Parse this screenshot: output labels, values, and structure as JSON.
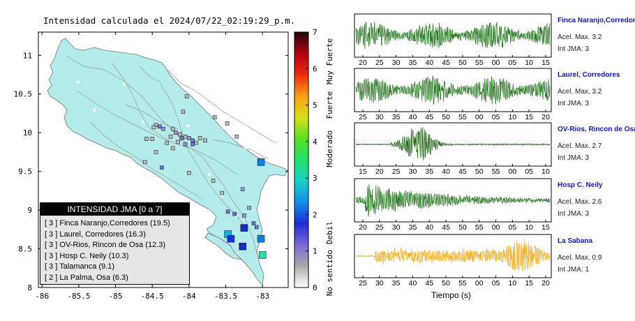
{
  "title": "Intensidad calculada el 2024/07/22_02:19:29_p.m.",
  "map": {
    "x_ticks": [
      "-86",
      "-85.5",
      "-85",
      "-84.5",
      "-84",
      "-83.5",
      "-83"
    ],
    "y_ticks": [
      "11",
      "10.5",
      "10",
      "9.5",
      "9",
      "8.5",
      "8"
    ],
    "x_values": [
      -86,
      -85.5,
      -85,
      -84.5,
      -84,
      -83.5,
      -83
    ],
    "y_values": [
      11,
      10.5,
      10,
      9.5,
      9,
      8.5,
      8
    ],
    "land_color": "#b4ecec",
    "stations": [
      {
        "lon": -83.02,
        "lat": 9.62,
        "color": "#0f7be0",
        "big": true
      },
      {
        "lon": -83.02,
        "lat": 8.63,
        "color": "#0f7be0",
        "big": true
      },
      {
        "lon": -83.0,
        "lat": 8.42,
        "color": "#26e0b0",
        "big": true
      },
      {
        "lon": -83.47,
        "lat": 8.69,
        "color": "#10b4e6",
        "big": true
      },
      {
        "lon": -83.43,
        "lat": 8.63,
        "color": "#1234d8",
        "big": true
      },
      {
        "lon": -83.25,
        "lat": 8.77,
        "color": "#1a28c8",
        "big": true
      },
      {
        "lon": -83.27,
        "lat": 8.53,
        "color": "#1a28c8",
        "big": true
      },
      {
        "lon": -83.27,
        "lat": 9.27,
        "color": "#8fa0e0",
        "big": false
      },
      {
        "lon": -83.18,
        "lat": 9.03,
        "color": "#8fa0e0",
        "big": false
      },
      {
        "lon": -83.47,
        "lat": 8.98,
        "color": "#6a78d8",
        "big": false
      },
      {
        "lon": -83.38,
        "lat": 8.95,
        "color": "#6a78d8",
        "big": false
      },
      {
        "lon": -83.25,
        "lat": 8.93,
        "color": "#9c8ce0",
        "big": false
      },
      {
        "lon": -83.12,
        "lat": 8.83,
        "color": "#6a78d8",
        "big": false
      },
      {
        "lon": -83.08,
        "lat": 8.78,
        "color": "#6a78d8",
        "big": false
      },
      {
        "lon": -83.55,
        "lat": 9.22,
        "color": "#bbbbbb",
        "big": false
      },
      {
        "lon": -83.67,
        "lat": 9.38,
        "color": "#bbbbbb",
        "big": false
      },
      {
        "lon": -84.0,
        "lat": 9.48,
        "color": "#bbbbbb",
        "big": false
      },
      {
        "lon": -84.6,
        "lat": 9.62,
        "color": "#bbbbbb",
        "big": false
      },
      {
        "lon": -84.37,
        "lat": 9.55,
        "color": "#6a78d8",
        "big": false
      },
      {
        "lon": -84.03,
        "lat": 10.47,
        "color": "#bbbbbb",
        "big": false
      },
      {
        "lon": -84.08,
        "lat": 10.27,
        "color": "#bbbbbb",
        "big": false
      },
      {
        "lon": -84.45,
        "lat": 10.1,
        "color": "#bbbbbb",
        "big": false
      },
      {
        "lon": -84.4,
        "lat": 10.08,
        "color": "#6a78d8",
        "big": false
      },
      {
        "lon": -84.35,
        "lat": 10.05,
        "color": "#9c8ce0",
        "big": false
      },
      {
        "lon": -84.22,
        "lat": 10.05,
        "color": "#bbbbbb",
        "big": false
      },
      {
        "lon": -84.18,
        "lat": 10.0,
        "color": "#9c8ce0",
        "big": false
      },
      {
        "lon": -84.12,
        "lat": 9.98,
        "color": "#bbbbbb",
        "big": false
      },
      {
        "lon": -84.05,
        "lat": 9.95,
        "color": "#bbbbbb",
        "big": false
      },
      {
        "lon": -84.0,
        "lat": 9.93,
        "color": "#9c8ce0",
        "big": false
      },
      {
        "lon": -83.95,
        "lat": 9.9,
        "color": "#6a78d8",
        "big": false
      },
      {
        "lon": -83.9,
        "lat": 9.87,
        "color": "#bbbbbb",
        "big": false
      },
      {
        "lon": -84.1,
        "lat": 9.93,
        "color": "#6a78d8",
        "big": false
      },
      {
        "lon": -84.25,
        "lat": 9.95,
        "color": "#bbbbbb",
        "big": false
      },
      {
        "lon": -84.15,
        "lat": 9.88,
        "color": "#bbbbbb",
        "big": false
      },
      {
        "lon": -84.05,
        "lat": 9.85,
        "color": "#9c8ce0",
        "big": false
      },
      {
        "lon": -83.85,
        "lat": 9.93,
        "color": "#bbbbbb",
        "big": false
      },
      {
        "lon": -83.78,
        "lat": 9.9,
        "color": "#bbbbbb",
        "big": false
      },
      {
        "lon": -83.95,
        "lat": 9.85,
        "color": "#6a78d8",
        "big": false
      },
      {
        "lon": -84.5,
        "lat": 9.92,
        "color": "#bbbbbb",
        "big": false
      },
      {
        "lon": -84.58,
        "lat": 9.92,
        "color": "#bbbbbb",
        "big": false
      },
      {
        "lon": -84.3,
        "lat": 9.87,
        "color": "#bbbbbb",
        "big": false
      },
      {
        "lon": -84.22,
        "lat": 9.8,
        "color": "#bbbbbb",
        "big": false
      },
      {
        "lon": -84.45,
        "lat": 9.75,
        "color": "#bbbbbb",
        "big": false
      },
      {
        "lon": -83.65,
        "lat": 10.2,
        "color": "#bbbbbb",
        "big": false
      },
      {
        "lon": -83.35,
        "lat": 9.95,
        "color": "#bbbbbb",
        "big": false
      },
      {
        "lon": -83.48,
        "lat": 10.12,
        "color": "#bbbbbb",
        "big": false
      },
      {
        "lon": -84.48,
        "lat": 10.07,
        "color": "#bbbbbb",
        "big": false
      }
    ],
    "legend": {
      "heading": "INTENSIDAD JMA [0 a 7]",
      "items": [
        "[ 3 ]  Finca Naranjo,Corredores (19.5)",
        "[ 3 ]  Laurel, Corredores (16.3)",
        "[ 3 ]  OV-Rios, Rincon de Osa (12.3)",
        "[ 3 ]  Hosp C. Neily (10.3)",
        "[ 3 ]  Talamanca (9.1)",
        "[ 2 ]  La Palma, Osa (6.3)"
      ]
    }
  },
  "colorbar": {
    "ticks": [
      "0",
      "1",
      "2",
      "3",
      "4",
      "5",
      "6",
      "7"
    ],
    "labels": [
      "No sentido",
      "Debil",
      "Moderado",
      "Fuerte",
      "Muy Fuerte"
    ],
    "colors": [
      "#ffffff",
      "#aaaaaa",
      "#7b68d8",
      "#1c2cd6",
      "#0f8ce8",
      "#1ad0c8",
      "#22e06a",
      "#5ce020",
      "#d8e018",
      "#f8a010",
      "#f02810",
      "#b00010",
      "#200808"
    ]
  },
  "waveforms": [
    {
      "name": "Finca Naranjo,Corredores",
      "acc": "Acel. Max. 3.2",
      "int": "Int JMA: 3",
      "color": "#2a7a24",
      "ticks": [
        "20",
        "25",
        "30",
        "35",
        "40",
        "45",
        "50",
        "55",
        "00",
        "05",
        "10",
        "15"
      ],
      "profile": "uniform"
    },
    {
      "name": "Laurel, Corredores",
      "acc": "Acel. Max. 3.2",
      "int": "Int JMA: 3",
      "color": "#2a7a24",
      "ticks": [
        "25",
        "30",
        "35",
        "40",
        "45",
        "50",
        "55",
        "00",
        "05",
        "10",
        "15",
        "20"
      ],
      "profile": "uniform"
    },
    {
      "name": "OV-Rios, Rincon de Osa",
      "acc": "Acel. Max. 2.7",
      "int": "Int JMA: 3",
      "color": "#2a6a20",
      "ticks": [
        "15",
        "20",
        "25",
        "30",
        "35",
        "40",
        "45",
        "50",
        "55",
        "00",
        "05",
        "10"
      ],
      "profile": "burst"
    },
    {
      "name": "Hosp C. Neily",
      "acc": "Acel. Max. 2.6",
      "int": "Int JMA: 3",
      "color": "#2a7a24",
      "ticks": [
        "20",
        "25",
        "30",
        "35",
        "40",
        "45",
        "50",
        "55",
        "00",
        "05",
        "10",
        "15"
      ],
      "profile": "decay"
    },
    {
      "name": "La Sabana",
      "acc": "Acel. Max. 0.9",
      "int": "Int JMA: 1",
      "color": "#f0b020",
      "ticks": [
        "25",
        "30",
        "35",
        "40",
        "45",
        "50",
        "55",
        "00",
        "05",
        "10",
        "15",
        "20"
      ],
      "profile": "late"
    }
  ],
  "time_axis_label": "Tiempo (s)"
}
